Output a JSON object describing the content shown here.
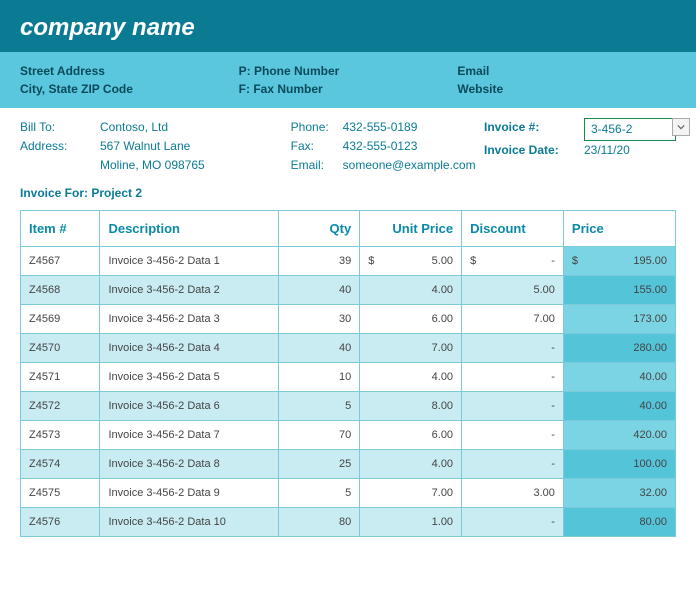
{
  "header": {
    "company_name": "company name"
  },
  "info_band": {
    "col1": {
      "line1": "Street Address",
      "line2": "City, State ZIP Code"
    },
    "col2": {
      "line1": "P: Phone Number",
      "line2": "F: Fax Number"
    },
    "col3": {
      "line1": "Email",
      "line2": "Website"
    }
  },
  "details": {
    "bill_to_label": "Bill To:",
    "bill_to_value": "Contoso, Ltd",
    "address_label": "Address:",
    "address_line1": "567 Walnut Lane",
    "address_line2": "Moline, MO 098765",
    "phone_label": "Phone:",
    "phone_value": "432-555-0189",
    "fax_label": "Fax:",
    "fax_value": "432-555-0123",
    "email_label": "Email:",
    "email_value": "someone@example.com",
    "invoice_num_label": "Invoice #:",
    "invoice_num_value": "3-456-2",
    "invoice_date_label": "Invoice Date:",
    "invoice_date_value": "23/11/20"
  },
  "invoice_for": "Invoice For: Project 2",
  "table": {
    "headers": {
      "item": "Item #",
      "description": "Description",
      "qty": "Qty",
      "unit_price": "Unit Price",
      "discount": "Discount",
      "price": "Price"
    },
    "rows": [
      {
        "item": "Z4567",
        "desc": "Invoice 3-456-2 Data 1",
        "qty": "39",
        "unit_price_sym": "$",
        "unit_price": "5.00",
        "discount_sym": "$",
        "discount": "-",
        "price_sym": "$",
        "price": "195.00"
      },
      {
        "item": "Z4568",
        "desc": "Invoice 3-456-2 Data 2",
        "qty": "40",
        "unit_price_sym": "",
        "unit_price": "4.00",
        "discount_sym": "",
        "discount": "5.00",
        "price_sym": "",
        "price": "155.00"
      },
      {
        "item": "Z4569",
        "desc": "Invoice 3-456-2 Data 3",
        "qty": "30",
        "unit_price_sym": "",
        "unit_price": "6.00",
        "discount_sym": "",
        "discount": "7.00",
        "price_sym": "",
        "price": "173.00"
      },
      {
        "item": "Z4570",
        "desc": "Invoice 3-456-2 Data 4",
        "qty": "40",
        "unit_price_sym": "",
        "unit_price": "7.00",
        "discount_sym": "",
        "discount": "-",
        "price_sym": "",
        "price": "280.00"
      },
      {
        "item": "Z4571",
        "desc": "Invoice 3-456-2 Data 5",
        "qty": "10",
        "unit_price_sym": "",
        "unit_price": "4.00",
        "discount_sym": "",
        "discount": "-",
        "price_sym": "",
        "price": "40.00"
      },
      {
        "item": "Z4572",
        "desc": "Invoice 3-456-2 Data 6",
        "qty": "5",
        "unit_price_sym": "",
        "unit_price": "8.00",
        "discount_sym": "",
        "discount": "-",
        "price_sym": "",
        "price": "40.00"
      },
      {
        "item": "Z4573",
        "desc": "Invoice 3-456-2 Data 7",
        "qty": "70",
        "unit_price_sym": "",
        "unit_price": "6.00",
        "discount_sym": "",
        "discount": "-",
        "price_sym": "",
        "price": "420.00"
      },
      {
        "item": "Z4574",
        "desc": "Invoice 3-456-2 Data 8",
        "qty": "25",
        "unit_price_sym": "",
        "unit_price": "4.00",
        "discount_sym": "",
        "discount": "-",
        "price_sym": "",
        "price": "100.00"
      },
      {
        "item": "Z4575",
        "desc": "Invoice 3-456-2 Data 9",
        "qty": "5",
        "unit_price_sym": "",
        "unit_price": "7.00",
        "discount_sym": "",
        "discount": "3.00",
        "price_sym": "",
        "price": "32.00"
      },
      {
        "item": "Z4576",
        "desc": "Invoice 3-456-2 Data 10",
        "qty": "80",
        "unit_price_sym": "",
        "unit_price": "1.00",
        "discount_sym": "",
        "discount": "-",
        "price_sym": "",
        "price": "80.00"
      }
    ]
  },
  "style": {
    "header_bg": "#0b7b94",
    "band_bg": "#5ac7de",
    "accent_text": "#0b7b94",
    "border_color": "#7bcad9",
    "row_even_bg": "#c9ecf3",
    "row_odd_bg": "#ffffff",
    "price_odd_bg": "#7bd4e4",
    "price_even_bg": "#54c4d9"
  }
}
